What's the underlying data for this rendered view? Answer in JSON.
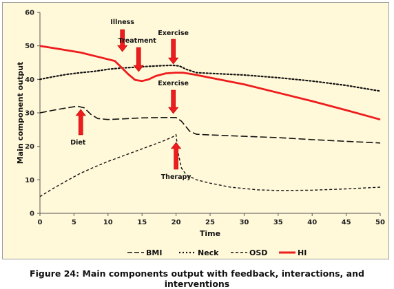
{
  "chart_data": {
    "type": "line",
    "xlabel": "Time",
    "ylabel": "Main component output",
    "xlim": [
      0,
      50
    ],
    "ylim": [
      0,
      60
    ],
    "xticks": [
      0,
      5,
      10,
      15,
      20,
      25,
      30,
      35,
      40,
      45,
      50
    ],
    "yticks": [
      0,
      10,
      20,
      30,
      40,
      50,
      60
    ],
    "grid": false,
    "legend_position": "bottom",
    "series": [
      {
        "name": "BMI",
        "color": "#111111",
        "dash": "long-dash",
        "points": [
          [
            0,
            30
          ],
          [
            2,
            30.8
          ],
          [
            4,
            31.5
          ],
          [
            5.5,
            32
          ],
          [
            6.5,
            31.5
          ],
          [
            7.5,
            29.5
          ],
          [
            8.5,
            28.3
          ],
          [
            10,
            28
          ],
          [
            12,
            28.2
          ],
          [
            15,
            28.5
          ],
          [
            18,
            28.6
          ],
          [
            20,
            28.6
          ],
          [
            20.8,
            27.5
          ],
          [
            22,
            24.5
          ],
          [
            23,
            23.6
          ],
          [
            25,
            23.4
          ],
          [
            30,
            23
          ],
          [
            35,
            22.6
          ],
          [
            40,
            22
          ],
          [
            45,
            21.5
          ],
          [
            50,
            21
          ]
        ]
      },
      {
        "name": "Neck",
        "color": "#111111",
        "dash": "dotted",
        "points": [
          [
            0,
            40
          ],
          [
            2,
            40.8
          ],
          [
            4,
            41.5
          ],
          [
            6,
            42
          ],
          [
            8,
            42.4
          ],
          [
            10,
            43
          ],
          [
            12,
            43.4
          ],
          [
            14,
            43.6
          ],
          [
            16,
            43.9
          ],
          [
            18,
            44.1
          ],
          [
            19.5,
            44.2
          ],
          [
            20.5,
            44
          ],
          [
            21.5,
            43
          ],
          [
            23,
            42
          ],
          [
            25,
            41.8
          ],
          [
            30,
            41.3
          ],
          [
            35,
            40.5
          ],
          [
            40,
            39.5
          ],
          [
            45,
            38.2
          ],
          [
            50,
            36.5
          ]
        ]
      },
      {
        "name": "OSD",
        "color": "#111111",
        "dash": "short-dash",
        "points": [
          [
            0,
            5
          ],
          [
            2,
            7.5
          ],
          [
            4,
            9.8
          ],
          [
            6,
            12
          ],
          [
            8,
            13.8
          ],
          [
            10,
            15.5
          ],
          [
            12,
            17
          ],
          [
            14,
            18.5
          ],
          [
            16,
            20
          ],
          [
            18,
            21.5
          ],
          [
            19.5,
            22.8
          ],
          [
            20,
            23.5
          ],
          [
            20.3,
            18
          ],
          [
            20.8,
            13.5
          ],
          [
            21.5,
            11.5
          ],
          [
            23,
            10
          ],
          [
            25,
            9
          ],
          [
            28,
            7.8
          ],
          [
            32,
            7
          ],
          [
            35,
            6.8
          ],
          [
            40,
            6.9
          ],
          [
            45,
            7.3
          ],
          [
            50,
            7.8
          ]
        ]
      },
      {
        "name": "HI",
        "color": "#ee1c1c",
        "dash": "solid",
        "points": [
          [
            0,
            50
          ],
          [
            3,
            49
          ],
          [
            6,
            48
          ],
          [
            9,
            46.5
          ],
          [
            11,
            45.5
          ],
          [
            12,
            43.5
          ],
          [
            13,
            41.5
          ],
          [
            14,
            39.8
          ],
          [
            15,
            39.5
          ],
          [
            16,
            40
          ],
          [
            17,
            41
          ],
          [
            18.5,
            41.8
          ],
          [
            20,
            42
          ],
          [
            21,
            42
          ],
          [
            22.5,
            41.5
          ],
          [
            25,
            40.5
          ],
          [
            30,
            38.5
          ],
          [
            35,
            36
          ],
          [
            40,
            33.5
          ],
          [
            45,
            30.8
          ],
          [
            50,
            28
          ]
        ]
      }
    ],
    "annotations": [
      {
        "label": "Illness",
        "x": 11
      },
      {
        "label": "Treatment",
        "x": 14.5
      },
      {
        "label": "Exercise",
        "x": 19.5
      },
      {
        "label": "Exercise",
        "x": 19.5
      },
      {
        "label": "Diet",
        "x": 6
      },
      {
        "label": "Therapy",
        "x": 20
      }
    ],
    "legend": [
      "BMI",
      "Neck",
      "OSD",
      "HI"
    ],
    "arrow_color": "#ee1c1c"
  },
  "caption": "Figure 24: Main components output with feedback, interactions, and interventions"
}
